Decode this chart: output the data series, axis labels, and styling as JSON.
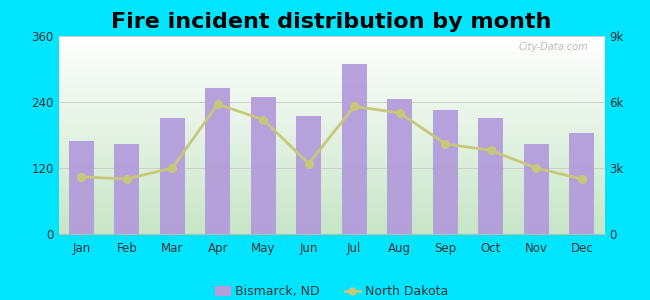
{
  "title": "Fire incident distribution by month",
  "months": [
    "Jan",
    "Feb",
    "Mar",
    "Apr",
    "May",
    "Jun",
    "Jul",
    "Aug",
    "Sep",
    "Oct",
    "Nov",
    "Dec"
  ],
  "bismarck_values": [
    170,
    163,
    210,
    265,
    250,
    215,
    310,
    245,
    225,
    210,
    163,
    183
  ],
  "north_dakota_values": [
    2600,
    2500,
    3000,
    5900,
    5200,
    3200,
    5800,
    5500,
    4100,
    3800,
    3000,
    2500
  ],
  "bar_color": "#b39ddb",
  "line_color": "#c8c87a",
  "line_marker": "o",
  "background_color_fig": "#00e5ff",
  "left_ylim": [
    0,
    360
  ],
  "right_ylim": [
    0,
    9000
  ],
  "left_yticks": [
    0,
    120,
    240,
    360
  ],
  "right_yticks": [
    0,
    3000,
    6000,
    9000
  ],
  "right_yticklabels": [
    "0",
    "3k",
    "6k",
    "9k"
  ],
  "legend_bismarck": "Bismarck, ND",
  "legend_nd": "North Dakota",
  "title_fontsize": 16,
  "watermark": "City-Data.com"
}
